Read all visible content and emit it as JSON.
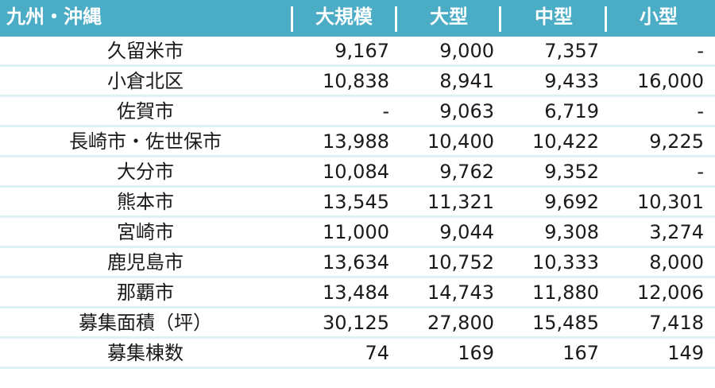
{
  "header": {
    "region": "九州・沖縄",
    "col1": "大規模",
    "col2": "大型",
    "col3": "中型",
    "col4": "小型"
  },
  "colors": {
    "header_bg": "#4bacc6",
    "header_text": "#ffffff",
    "row_separator": "#dff1f7",
    "body_text": "#1a1a1a"
  },
  "rows": [
    {
      "name": "久留米市",
      "v1": "9,167",
      "v2": "9,000",
      "v3": "7,357",
      "v4": "-"
    },
    {
      "name": "小倉北区",
      "v1": "10,838",
      "v2": "8,941",
      "v3": "9,433",
      "v4": "16,000"
    },
    {
      "name": "佐賀市",
      "v1": "-",
      "v2": "9,063",
      "v3": "6,719",
      "v4": "-"
    },
    {
      "name": "長崎市・佐世保市",
      "v1": "13,988",
      "v2": "10,400",
      "v3": "10,422",
      "v4": "9,225"
    },
    {
      "name": "大分市",
      "v1": "10,084",
      "v2": "9,762",
      "v3": "9,352",
      "v4": "-"
    },
    {
      "name": "熊本市",
      "v1": "13,545",
      "v2": "11,321",
      "v3": "9,692",
      "v4": "10,301"
    },
    {
      "name": "宮崎市",
      "v1": "11,000",
      "v2": "9,044",
      "v3": "9,308",
      "v4": "3,274"
    },
    {
      "name": "鹿児島市",
      "v1": "13,634",
      "v2": "10,752",
      "v3": "10,333",
      "v4": "8,000"
    },
    {
      "name": "那覇市",
      "v1": "13,484",
      "v2": "14,743",
      "v3": "11,880",
      "v4": "12,006"
    },
    {
      "name": "募集面積（坪）",
      "v1": "30,125",
      "v2": "27,800",
      "v3": "15,485",
      "v4": "7,418"
    },
    {
      "name": "募集棟数",
      "v1": "74",
      "v2": "169",
      "v3": "167",
      "v4": "149"
    }
  ]
}
